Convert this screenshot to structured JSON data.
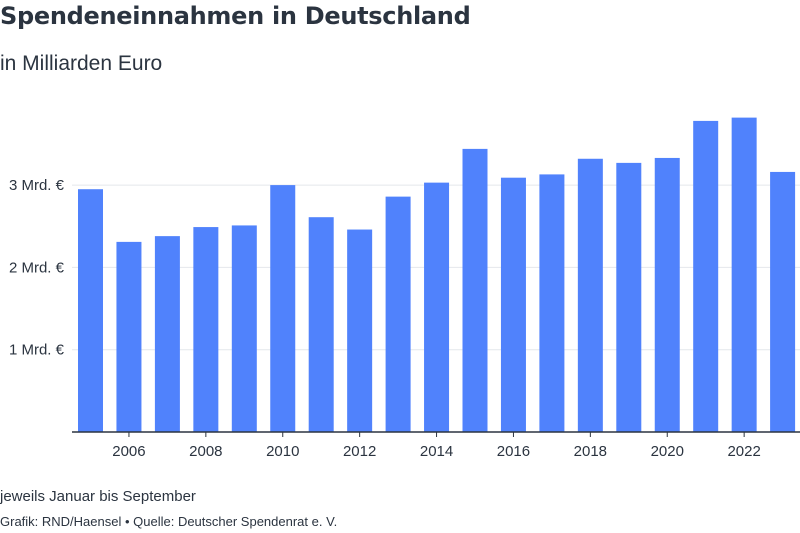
{
  "header": {
    "title": "Spendeneinnahmen in Deutschland",
    "subtitle": "in Milliarden Euro"
  },
  "footer": {
    "note": "jeweils Januar bis September",
    "credit": "Grafik: RND/Haensel • Quelle: Deutscher Spendenrat e. V."
  },
  "colors": {
    "bar": "#5082fc",
    "grid": "#e4e7eb",
    "axis": "#2b3440"
  },
  "chart_data": {
    "type": "bar",
    "title": "Spendeneinnahmen in Deutschland",
    "subtitle": "in Milliarden Euro",
    "categories": [
      2005,
      2006,
      2007,
      2008,
      2009,
      2010,
      2011,
      2012,
      2013,
      2014,
      2015,
      2016,
      2017,
      2018,
      2019,
      2020,
      2021,
      2022,
      2023
    ],
    "values": [
      2.95,
      2.31,
      2.38,
      2.49,
      2.51,
      3.0,
      2.61,
      2.46,
      2.86,
      3.03,
      3.44,
      3.09,
      3.13,
      3.32,
      3.27,
      3.33,
      3.78,
      3.82,
      3.16
    ],
    "x_tick_labels": [
      "2006",
      "2008",
      "2010",
      "2012",
      "2014",
      "2016",
      "2018",
      "2020",
      "2022"
    ],
    "y_ticks": [
      {
        "value": 1,
        "label": "1 Mrd. €"
      },
      {
        "value": 2,
        "label": "2 Mrd. €"
      },
      {
        "value": 3,
        "label": "3 Mrd. €"
      }
    ],
    "ylim": [
      0,
      4
    ],
    "grid": true,
    "legend": "none"
  }
}
